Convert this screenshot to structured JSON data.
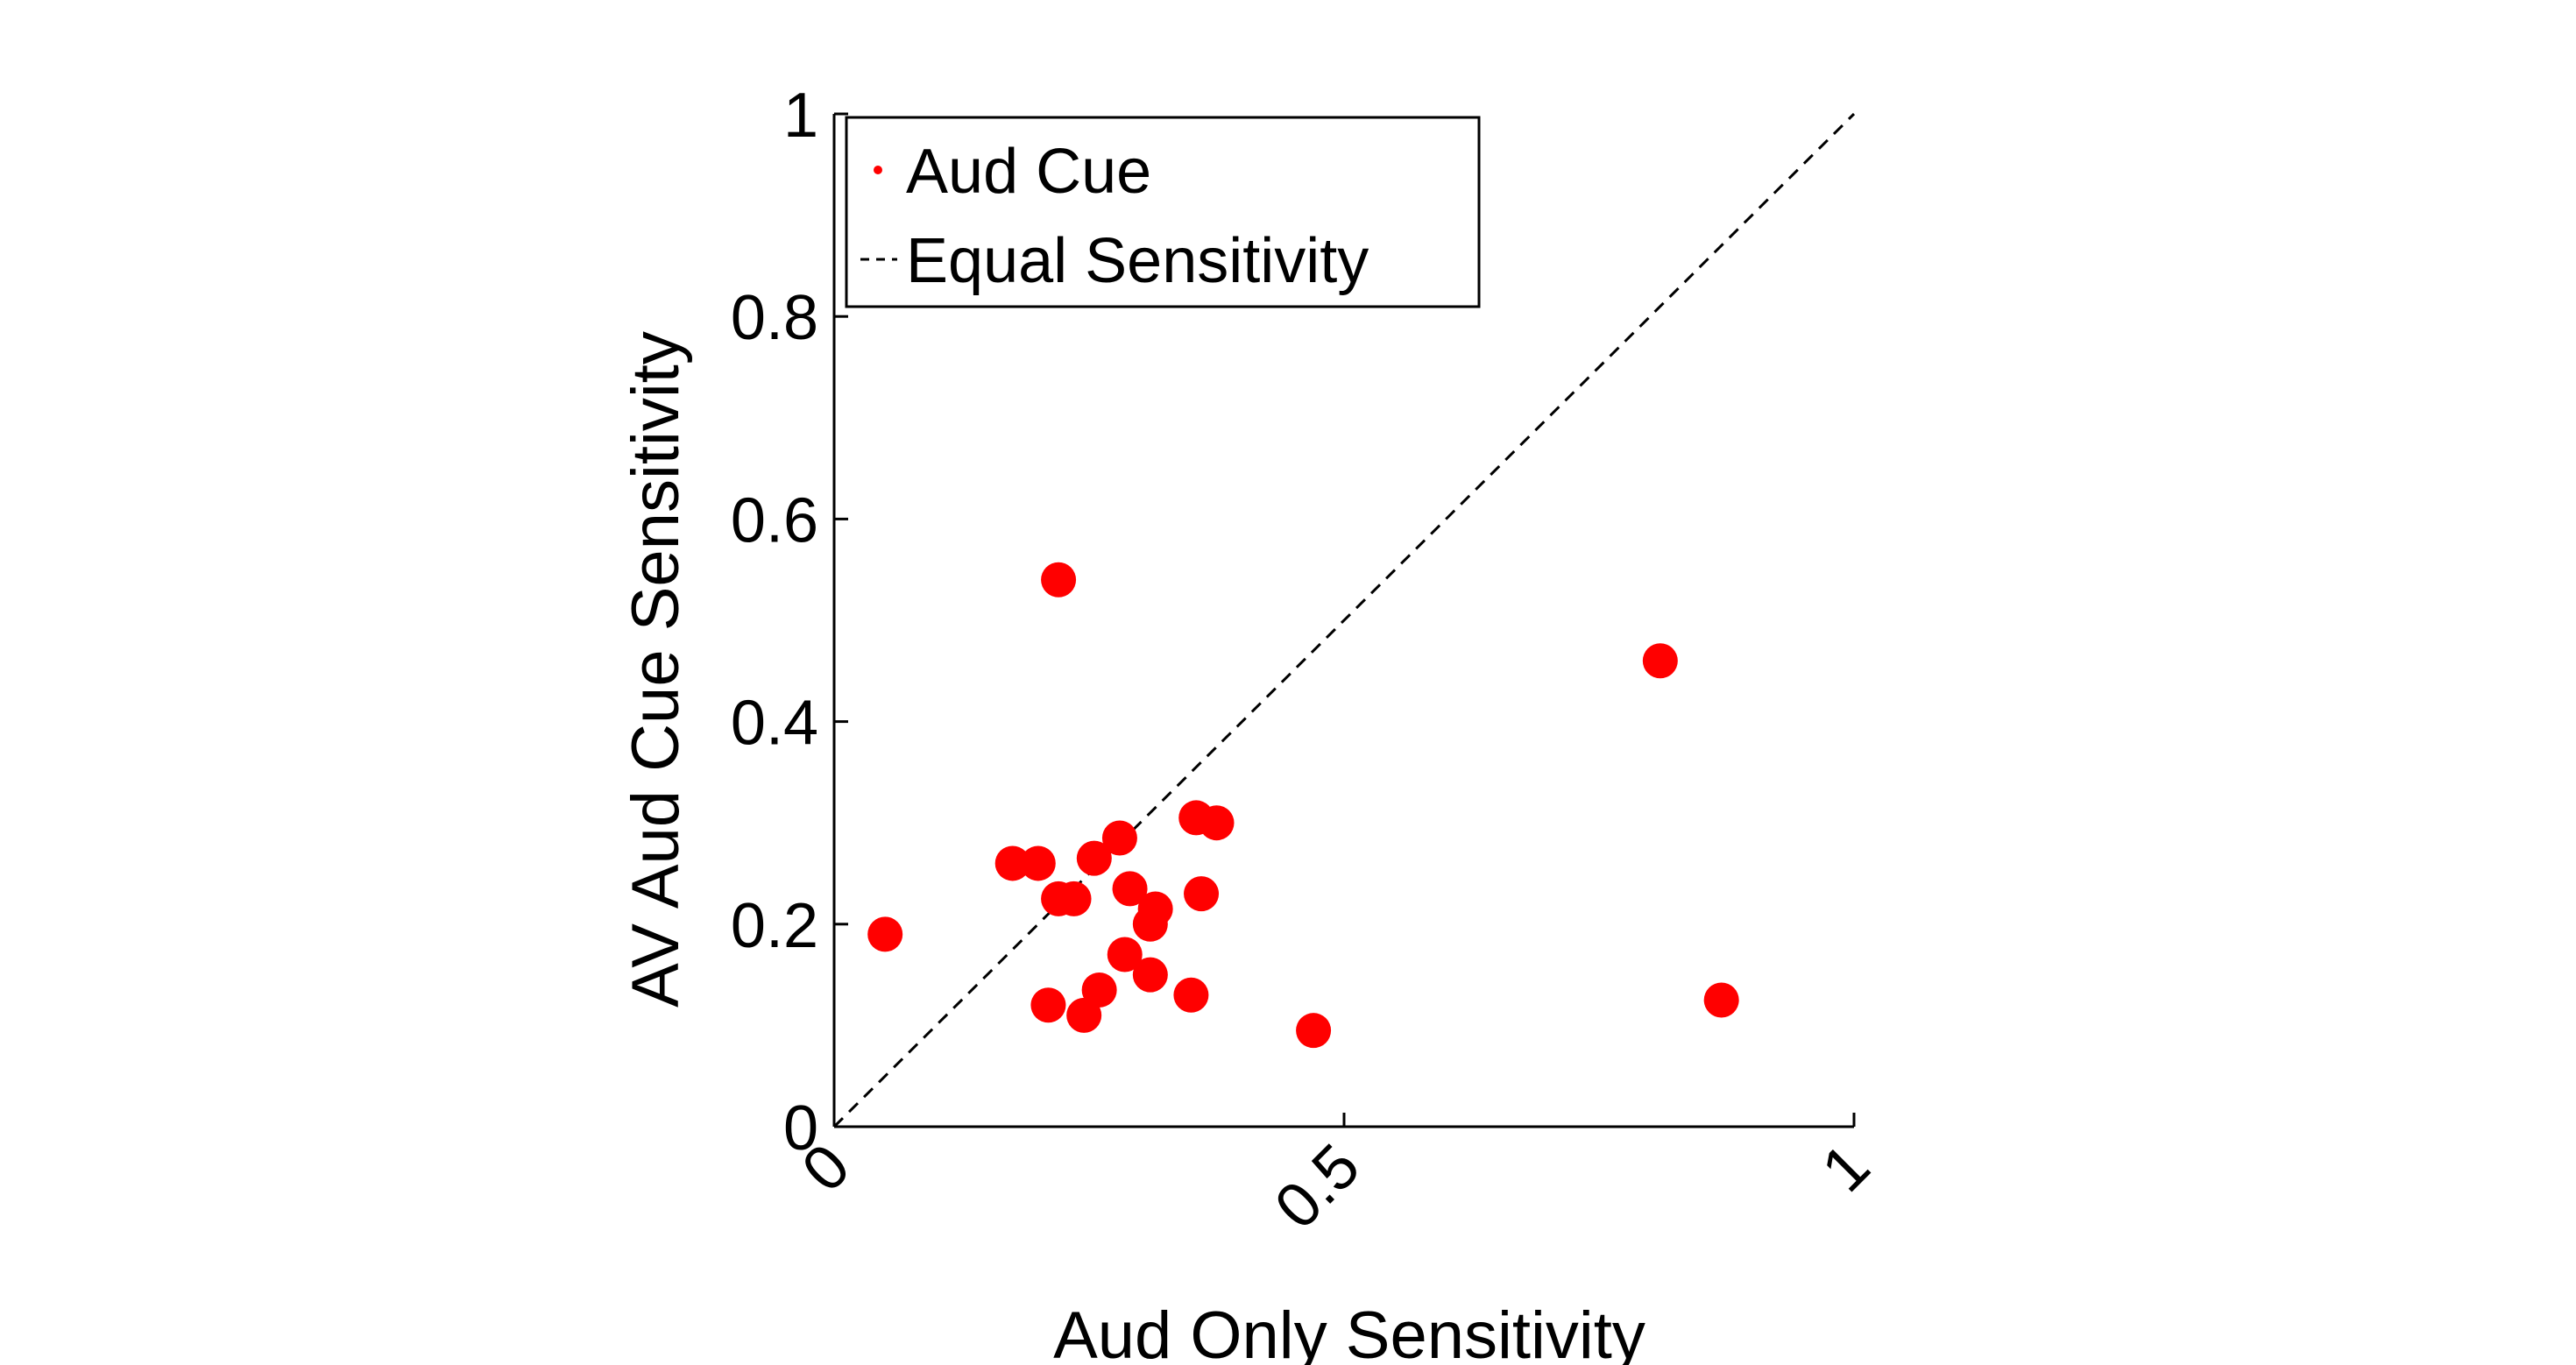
{
  "chart_data": {
    "type": "scatter",
    "title": "",
    "xlabel": "Aud Only Sensitivity",
    "ylabel": "AV Aud Cue Sensitivity",
    "xlim": [
      0,
      1
    ],
    "ylim": [
      0,
      1
    ],
    "xticks": [
      {
        "value": 0,
        "label": "0"
      },
      {
        "value": 0.5,
        "label": "0.5"
      },
      {
        "value": 1,
        "label": "1"
      }
    ],
    "yticks": [
      {
        "value": 0,
        "label": "0"
      },
      {
        "value": 0.2,
        "label": "0.2"
      },
      {
        "value": 0.4,
        "label": "0.4"
      },
      {
        "value": 0.6,
        "label": "0.6"
      },
      {
        "value": 0.8,
        "label": "0.8"
      },
      {
        "value": 1,
        "label": "1"
      }
    ],
    "grid": false,
    "legend_position": "top-left",
    "series": [
      {
        "name": "Aud Cue",
        "color": "#ff0000",
        "marker": "circle",
        "points": [
          {
            "x": 0.05,
            "y": 0.19
          },
          {
            "x": 0.22,
            "y": 0.54
          },
          {
            "x": 0.175,
            "y": 0.26
          },
          {
            "x": 0.2,
            "y": 0.26
          },
          {
            "x": 0.22,
            "y": 0.225
          },
          {
            "x": 0.235,
            "y": 0.225
          },
          {
            "x": 0.255,
            "y": 0.265
          },
          {
            "x": 0.28,
            "y": 0.285
          },
          {
            "x": 0.29,
            "y": 0.235
          },
          {
            "x": 0.315,
            "y": 0.215
          },
          {
            "x": 0.31,
            "y": 0.2
          },
          {
            "x": 0.285,
            "y": 0.17
          },
          {
            "x": 0.31,
            "y": 0.15
          },
          {
            "x": 0.26,
            "y": 0.135
          },
          {
            "x": 0.21,
            "y": 0.12
          },
          {
            "x": 0.245,
            "y": 0.11
          },
          {
            "x": 0.35,
            "y": 0.13
          },
          {
            "x": 0.355,
            "y": 0.305
          },
          {
            "x": 0.375,
            "y": 0.3
          },
          {
            "x": 0.36,
            "y": 0.23
          },
          {
            "x": 0.47,
            "y": 0.095
          },
          {
            "x": 0.81,
            "y": 0.46
          },
          {
            "x": 0.87,
            "y": 0.125
          }
        ]
      },
      {
        "name": "Equal Sensitivity",
        "color": "#000000",
        "line_style": "dashed",
        "points": [
          {
            "x": 0,
            "y": 0
          },
          {
            "x": 1,
            "y": 1
          }
        ]
      }
    ]
  }
}
